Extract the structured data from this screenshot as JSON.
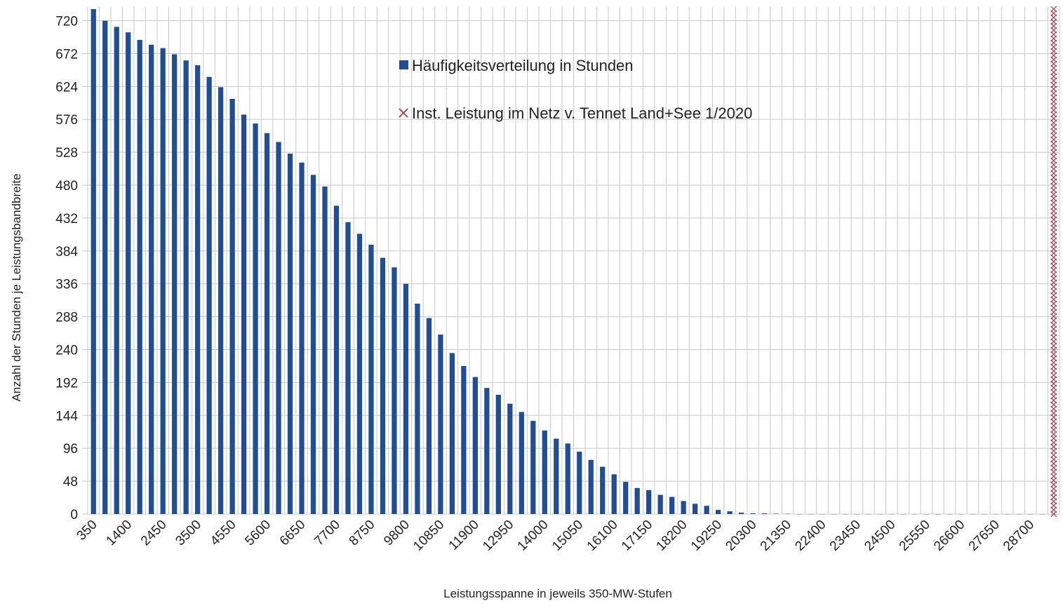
{
  "chart_data": {
    "type": "bar",
    "x_label": "Leistungsspanne in jeweils 350-MW-Stufen",
    "y_label": "Anzahl der Stunden je Leistungsbandbreite",
    "categories": [
      "350",
      null,
      null,
      "1400",
      null,
      null,
      "2450",
      null,
      null,
      "3500",
      null,
      null,
      "4550",
      null,
      null,
      "5600",
      null,
      null,
      "6650",
      null,
      null,
      "7700",
      null,
      null,
      "8750",
      null,
      null,
      "9800",
      null,
      null,
      "10850",
      null,
      null,
      "11900",
      null,
      null,
      "12950",
      null,
      null,
      "14000",
      null,
      null,
      "15050",
      null,
      null,
      "16100",
      null,
      null,
      "17150",
      null,
      null,
      "18200",
      null,
      null,
      "19250",
      null,
      null,
      "20300",
      null,
      null,
      "21350",
      null,
      null,
      "22400",
      null,
      null,
      "23450",
      null,
      null,
      "24500",
      null,
      null,
      "25550",
      null,
      null,
      "26600",
      null,
      null,
      "27650",
      null,
      null,
      "28700",
      null,
      null
    ],
    "series": [
      {
        "name": "Häufigkeitsverteilung in Stunden",
        "color": "#1f4e96",
        "kind": "bar",
        "values": [
          737,
          720,
          711,
          703,
          692,
          685,
          680,
          671,
          662,
          655,
          638,
          623,
          606,
          583,
          570,
          556,
          543,
          526,
          513,
          495,
          478,
          450,
          426,
          409,
          393,
          374,
          360,
          336,
          307,
          286,
          262,
          235,
          216,
          200,
          184,
          174,
          161,
          149,
          136,
          122,
          110,
          103,
          91,
          79,
          69,
          58,
          47,
          38,
          35,
          28,
          25,
          19,
          15,
          12,
          6,
          4,
          2,
          1,
          1,
          0.5,
          0.3,
          0,
          0,
          0,
          0,
          0,
          0,
          0,
          0,
          0,
          0,
          0,
          0,
          0,
          0,
          0,
          0,
          0,
          0,
          0,
          0,
          0,
          0,
          0
        ]
      },
      {
        "name": "Inst. Leistung im Netz v. Tennet  Land+See 1/2020",
        "color": "#b0303a",
        "kind": "marker-column",
        "values": [
          null,
          null,
          null,
          null,
          null,
          null,
          null,
          null,
          null,
          null,
          null,
          null,
          null,
          null,
          null,
          null,
          null,
          null,
          null,
          null,
          null,
          null,
          null,
          null,
          null,
          null,
          null,
          null,
          null,
          null,
          null,
          null,
          null,
          null,
          null,
          null,
          null,
          null,
          null,
          null,
          null,
          null,
          null,
          null,
          null,
          null,
          null,
          null,
          null,
          null,
          null,
          null,
          null,
          null,
          null,
          null,
          null,
          null,
          null,
          null,
          null,
          null,
          null,
          null,
          null,
          null,
          null,
          null,
          null,
          null,
          null,
          null,
          null,
          null,
          null,
          null,
          null,
          null,
          null,
          null,
          null,
          null,
          null,
          740
        ]
      }
    ],
    "ylim": [
      0,
      740
    ],
    "yticks": [
      0,
      48,
      96,
      144,
      192,
      240,
      288,
      336,
      384,
      432,
      480,
      528,
      576,
      624,
      672,
      720
    ],
    "grid": true
  }
}
